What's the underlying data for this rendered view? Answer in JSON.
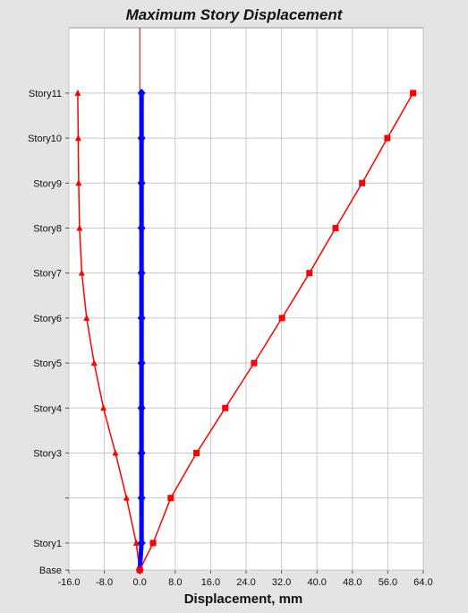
{
  "chart_data": {
    "type": "line",
    "title": "Maximum Story Displacement",
    "xlabel": "Displacement, mm",
    "ylabel": "",
    "xlim": [
      -16.0,
      64.0
    ],
    "x_ticks": [
      -16.0,
      -8.0,
      0.0,
      8.0,
      16.0,
      24.0,
      32.0,
      40.0,
      48.0,
      56.0,
      64.0
    ],
    "x_tick_labels": [
      "-16.0",
      "-8.0",
      "0.0",
      "8.0",
      "16.0",
      "24.0",
      "32.0",
      "40.0",
      "48.0",
      "56.0",
      "64.0"
    ],
    "story_labels": [
      "Base",
      "Story1",
      "",
      "Story3",
      "Story4",
      "Story5",
      "Story6",
      "Story7",
      "Story8",
      "Story9",
      "Story10",
      "Story11"
    ],
    "story_elevation_index": [
      0,
      0.6,
      1.6,
      2.6,
      3.6,
      4.6,
      5.6,
      6.6,
      7.6,
      8.6,
      9.6,
      10.6
    ],
    "grid": true,
    "zero_line_color": "#cc0000",
    "series": [
      {
        "marker": "triangle",
        "color": "#ff0000",
        "values": [
          0.0,
          -0.8,
          -3.0,
          -5.5,
          -8.2,
          -10.3,
          -12.0,
          -13.1,
          -13.6,
          -13.8,
          -13.9,
          -14.0
        ]
      },
      {
        "marker": "diamond",
        "color": "#0000ff",
        "values": [
          0.0,
          0.4,
          0.4,
          0.4,
          0.4,
          0.4,
          0.4,
          0.4,
          0.4,
          0.4,
          0.4,
          0.4
        ]
      },
      {
        "marker": "square",
        "color": "#ff0000",
        "values": [
          0.0,
          3.0,
          7.0,
          12.8,
          19.3,
          25.8,
          32.1,
          38.3,
          44.2,
          50.2,
          55.9,
          61.7
        ]
      }
    ]
  }
}
